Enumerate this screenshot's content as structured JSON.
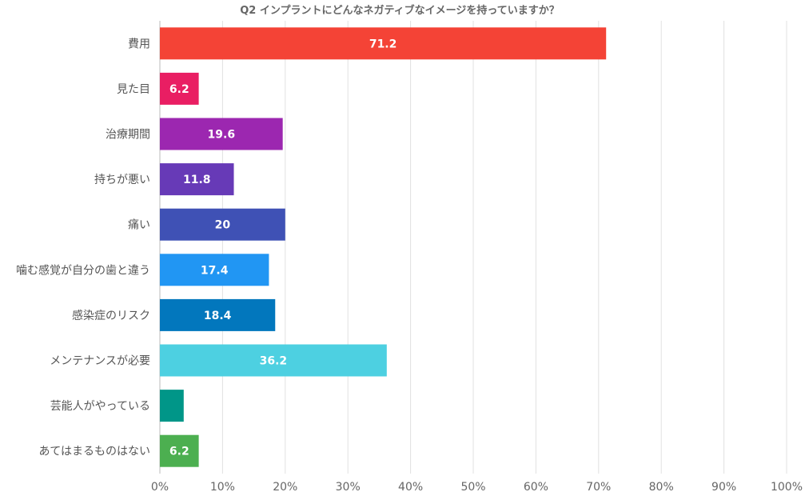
{
  "chart_data": {
    "type": "bar",
    "orientation": "horizontal",
    "title": "Q2 インプラントにどんなネガティブなイメージを持っていますか？",
    "xlabel": "",
    "ylabel": "",
    "xlim": [
      0,
      100
    ],
    "grid": true,
    "tick_labels": [
      "0%",
      "10%",
      "20%",
      "30%",
      "40%",
      "50%",
      "60%",
      "70%",
      "80%",
      "90%",
      "100%"
    ],
    "categories": [
      "費用",
      "見た目",
      "治療期間",
      "持ちが悪い",
      "痛い",
      "噛む感覚が自分の歯と違う",
      "感染症のリスク",
      "メンテナンスが必要",
      "芸能人がやっている",
      "あてはまるものはない"
    ],
    "values": [
      71.2,
      6.2,
      19.6,
      11.8,
      20,
      17.4,
      18.4,
      36.2,
      3.8,
      6.2
    ],
    "data_labels": [
      "71.2",
      "6.2",
      "19.6",
      "11.8",
      "20",
      "17.4",
      "18.4",
      "36.2",
      "",
      "6.2"
    ],
    "colors": [
      "#f44336",
      "#e91e63",
      "#9c27b0",
      "#673ab7",
      "#3f51b5",
      "#2196f3",
      "#0277bd",
      "#4dd0e1",
      "#009688",
      "#4caf50"
    ]
  }
}
